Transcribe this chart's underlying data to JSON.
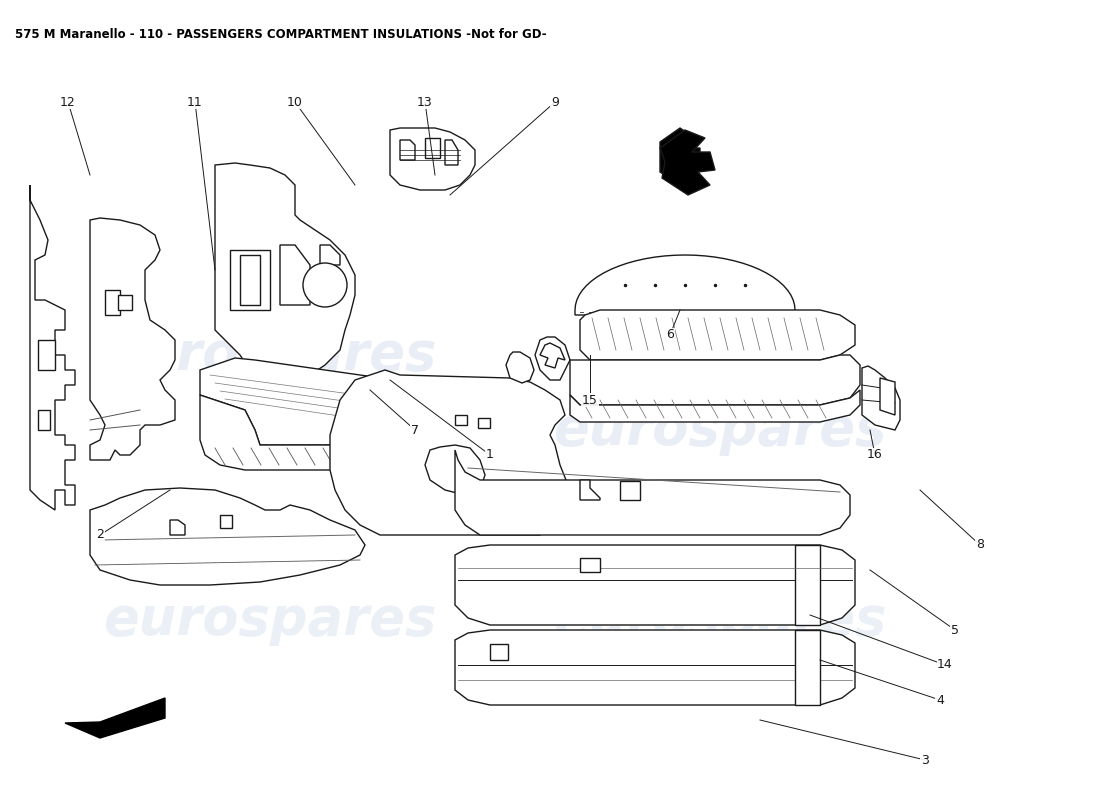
{
  "title": "575 M Maranello - 110 - PASSENGERS COMPARTMENT INSULATIONS -Not for GD-",
  "title_fontsize": 8.5,
  "title_color": "#000000",
  "bg_color": "#ffffff",
  "watermark_text": "eurospares",
  "wm_color": "#c8d4e8",
  "wm_alpha": 0.45,
  "line_color": "#1a1a1a",
  "line_width": 1.0,
  "labels": [
    [
      "1",
      490,
      455,
      390,
      380
    ],
    [
      "2",
      100,
      535,
      170,
      490
    ],
    [
      "3",
      925,
      760,
      760,
      720
    ],
    [
      "4",
      940,
      700,
      820,
      660
    ],
    [
      "5",
      955,
      630,
      870,
      570
    ],
    [
      "6",
      670,
      335,
      680,
      310
    ],
    [
      "7",
      415,
      430,
      370,
      390
    ],
    [
      "8",
      980,
      545,
      920,
      490
    ],
    [
      "9",
      555,
      102,
      450,
      195
    ],
    [
      "10",
      295,
      102,
      355,
      185
    ],
    [
      "11",
      195,
      102,
      215,
      270
    ],
    [
      "12",
      68,
      102,
      90,
      175
    ],
    [
      "13",
      425,
      102,
      435,
      175
    ],
    [
      "14",
      945,
      665,
      810,
      615
    ],
    [
      "15",
      590,
      400,
      590,
      355
    ],
    [
      "16",
      875,
      455,
      870,
      430
    ]
  ]
}
